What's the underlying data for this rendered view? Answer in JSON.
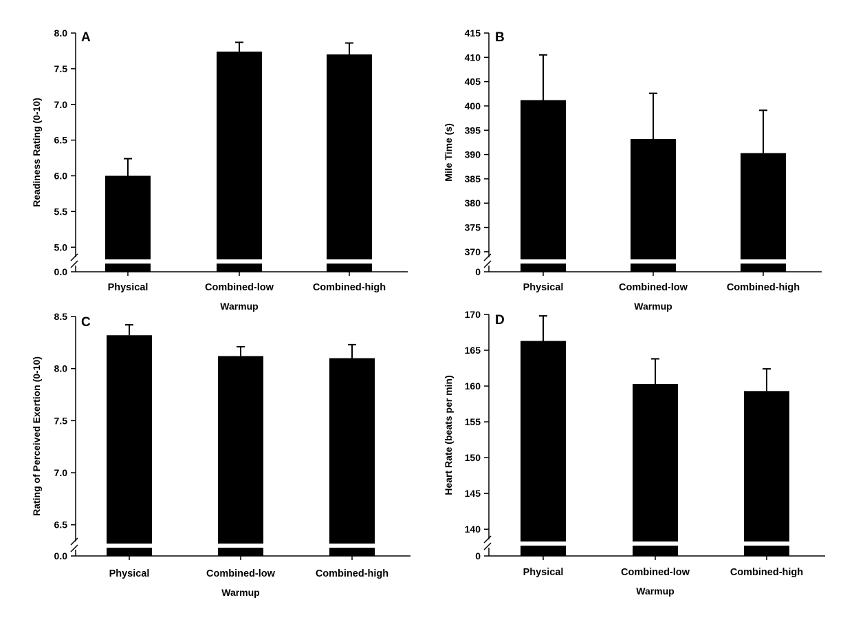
{
  "chart_data": [
    {
      "type": "bar",
      "panel_label": "A",
      "ylabel": "Readiness Rating (0-10)",
      "xlabel": "Warmup",
      "categories": [
        "Physical",
        "Combined-low",
        "Combined-high"
      ],
      "values": [
        6.0,
        7.74,
        7.7
      ],
      "errors": [
        0.24,
        0.13,
        0.16
      ],
      "ylim": [
        4.8,
        8.0
      ],
      "yticks": [
        "5.0",
        "5.5",
        "6.0",
        "6.5",
        "7.0",
        "7.5",
        "8.0"
      ],
      "broken_axis_label": "0.0",
      "axis_break": true,
      "bar_color": "#000000"
    },
    {
      "type": "bar",
      "panel_label": "B",
      "ylabel": "Mile Time (s)",
      "xlabel": "Warmup",
      "categories": [
        "Physical",
        "Combined-low",
        "Combined-high"
      ],
      "values": [
        401.2,
        393.2,
        390.3
      ],
      "errors": [
        9.3,
        9.4,
        8.8
      ],
      "ylim": [
        368,
        415
      ],
      "yticks": [
        "370",
        "375",
        "380",
        "385",
        "390",
        "395",
        "400",
        "405",
        "410",
        "415"
      ],
      "broken_axis_label": "0",
      "axis_break": true,
      "bar_color": "#000000"
    },
    {
      "type": "bar",
      "panel_label": "C",
      "ylabel": "Rating of Perceived Exertion (0-10)",
      "xlabel": "Warmup",
      "categories": [
        "Physical",
        "Combined-low",
        "Combined-high"
      ],
      "values": [
        8.32,
        8.12,
        8.1
      ],
      "errors": [
        0.1,
        0.09,
        0.13
      ],
      "ylim": [
        6.3,
        8.5
      ],
      "yticks": [
        "6.5",
        "7.0",
        "7.5",
        "8.0",
        "8.5"
      ],
      "broken_axis_label": "0.0",
      "axis_break": true,
      "bar_color": "#000000"
    },
    {
      "type": "bar",
      "panel_label": "D",
      "ylabel": "Heart Rate (beats per min)",
      "xlabel": "Warmup",
      "categories": [
        "Physical",
        "Combined-low",
        "Combined-high"
      ],
      "values": [
        166.3,
        160.3,
        159.3
      ],
      "errors": [
        3.5,
        3.5,
        3.1
      ],
      "ylim": [
        138,
        170
      ],
      "yticks": [
        "140",
        "145",
        "150",
        "155",
        "160",
        "165",
        "170"
      ],
      "broken_axis_label": "0",
      "axis_break": true,
      "bar_color": "#000000"
    }
  ]
}
